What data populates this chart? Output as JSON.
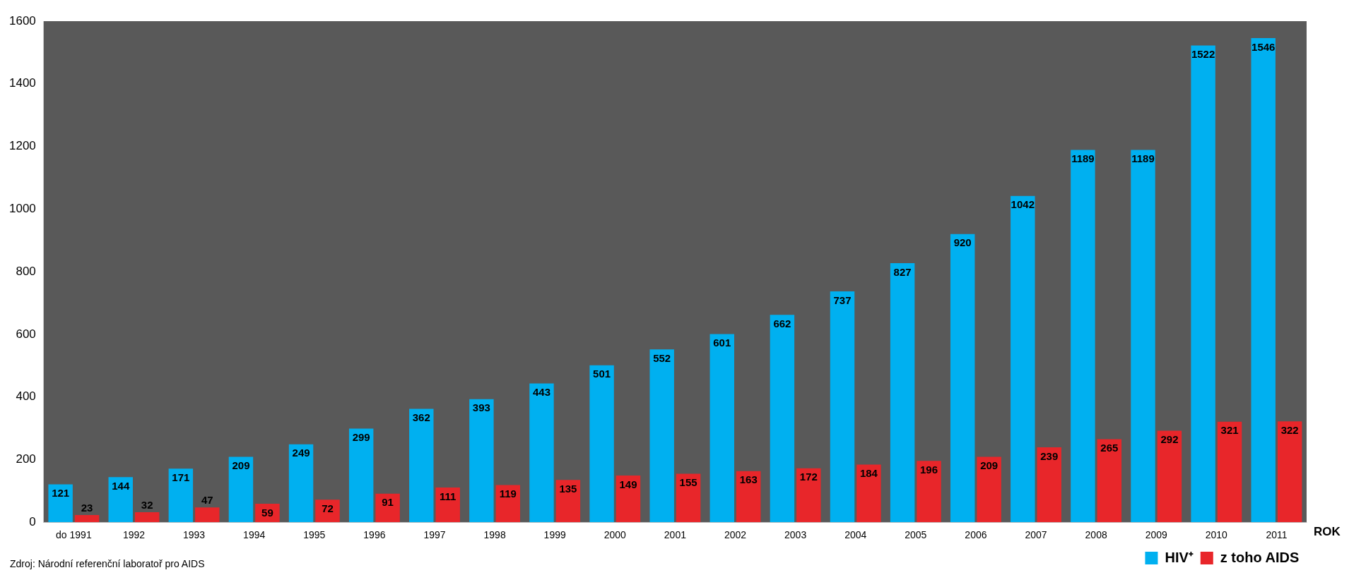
{
  "chart_data": {
    "type": "bar",
    "xlabel": "ROK",
    "categories": [
      "do 1991",
      "1992",
      "1993",
      "1994",
      "1995",
      "1996",
      "1997",
      "1998",
      "1999",
      "2000",
      "2001",
      "2002",
      "2003",
      "2004",
      "2005",
      "2006",
      "2007",
      "2008",
      "2009",
      "2010",
      "2011"
    ],
    "series": [
      {
        "name": "HIV⁺",
        "color": "#00b0f0",
        "values": [
          121,
          144,
          171,
          209,
          249,
          299,
          362,
          393,
          443,
          501,
          552,
          601,
          662,
          737,
          827,
          920,
          1042,
          1189,
          1189,
          1522,
          1546
        ]
      },
      {
        "name": "z toho AIDS",
        "color": "#e8262a",
        "values": [
          23,
          32,
          47,
          59,
          72,
          91,
          111,
          119,
          135,
          149,
          155,
          163,
          172,
          184,
          196,
          209,
          239,
          265,
          292,
          321,
          322
        ]
      }
    ],
    "ylim": [
      0,
      1600
    ],
    "yticks": [
      0,
      200,
      400,
      600,
      800,
      1000,
      1200,
      1400,
      1600
    ],
    "grid": false,
    "legend": "bottom right",
    "data_labels": true,
    "annotations": [
      "Zdroj: Národní referenční laboratoř pro AIDS"
    ]
  }
}
